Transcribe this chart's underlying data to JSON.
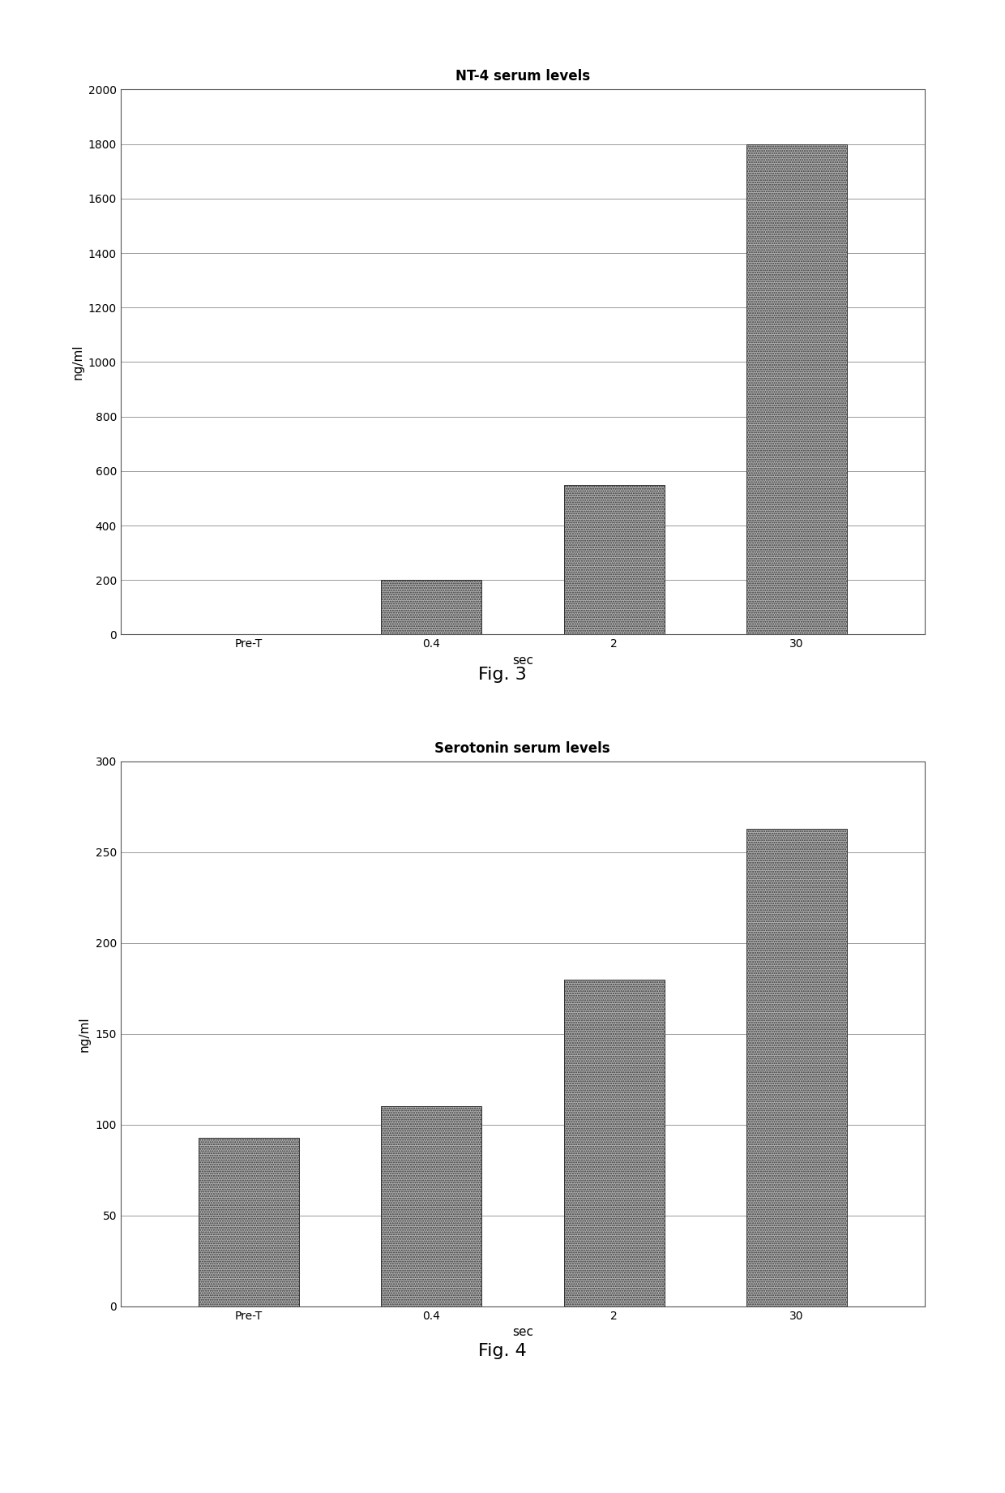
{
  "chart1": {
    "title": "NT-4 serum levels",
    "categories": [
      "Pre-T",
      "0.4",
      "2",
      "30"
    ],
    "values": [
      0,
      200,
      550,
      1800
    ],
    "ylabel": "ng/ml",
    "xlabel": "sec",
    "ylim": [
      0,
      2000
    ],
    "yticks": [
      0,
      200,
      400,
      600,
      800,
      1000,
      1200,
      1400,
      1600,
      1800,
      2000
    ],
    "fig_label": "Fig. 3"
  },
  "chart2": {
    "title": "Serotonin serum levels",
    "categories": [
      "Pre-T",
      "0.4",
      "2",
      "30"
    ],
    "values": [
      93,
      110,
      180,
      263
    ],
    "ylabel": "ng/ml",
    "xlabel": "sec",
    "ylim": [
      0,
      300
    ],
    "yticks": [
      0,
      50,
      100,
      150,
      200,
      250,
      300
    ],
    "fig_label": "Fig. 4"
  },
  "bar_color": "#b0b0b0",
  "bar_edgecolor": "#333333",
  "background_color": "#ffffff",
  "title_fontsize": 12,
  "axis_label_fontsize": 11,
  "tick_fontsize": 10,
  "fig_label_fontsize": 16,
  "bar_width": 0.55,
  "hatch": "......",
  "outer_box_color": "#cccccc",
  "grid_color": "#999999",
  "grid_linewidth": 0.7
}
